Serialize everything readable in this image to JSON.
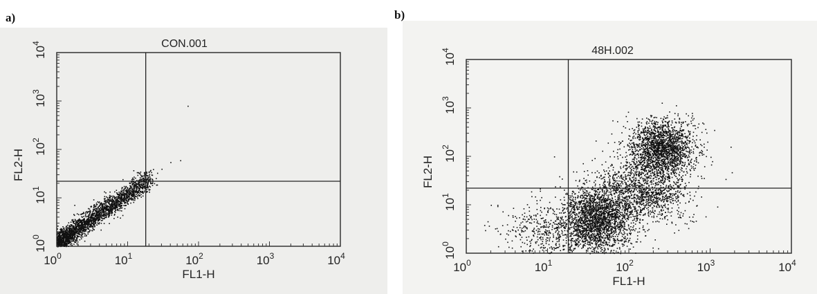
{
  "panels": [
    {
      "label": "a)"
    },
    {
      "label": "b)"
    }
  ],
  "chart_data": [
    {
      "type": "scatter",
      "title": "CON.001",
      "xlabel": "FL1-H",
      "ylabel": "FL2-H",
      "xscale": "log",
      "yscale": "log",
      "xlim": [
        1,
        10000
      ],
      "ylim": [
        1,
        10000
      ],
      "xticks": [
        1,
        10,
        100,
        1000,
        10000
      ],
      "yticks": [
        1,
        10,
        100,
        1000,
        10000
      ],
      "grid": false,
      "quadrant_gates": {
        "x": 18,
        "y": 22
      },
      "clusters": [
        {
          "x_range": [
            1,
            20
          ],
          "relation": "diagonal",
          "y_at_x1": 1.2,
          "y_at_x20": 25,
          "spread": 0.1,
          "points": 2600
        }
      ],
      "outliers": [
        [
          30,
          40
        ],
        [
          40,
          55
        ],
        [
          55,
          60
        ],
        [
          70,
          800
        ],
        [
          22,
          30
        ],
        [
          26,
          33
        ]
      ]
    },
    {
      "type": "scatter",
      "title": "48H.002",
      "xlabel": "FL1-H",
      "ylabel": "FL2-H",
      "xscale": "log",
      "yscale": "log",
      "xlim": [
        1,
        10000
      ],
      "ylim": [
        1,
        10000
      ],
      "xticks": [
        1,
        10,
        100,
        1000,
        10000
      ],
      "yticks": [
        1,
        10,
        100,
        1000,
        10000
      ],
      "grid": false,
      "quadrant_gates": {
        "x": 18,
        "y": 22
      },
      "clusters": [
        {
          "center": [
            40,
            5
          ],
          "spread": [
            0.22,
            0.35
          ],
          "points": 2200
        },
        {
          "center": [
            250,
            150
          ],
          "spread": [
            0.2,
            0.28
          ],
          "points": 1900
        },
        {
          "center": [
            150,
            20
          ],
          "spread": [
            0.3,
            0.35
          ],
          "points": 1300
        },
        {
          "center": [
            10,
            3
          ],
          "spread": [
            0.3,
            0.3
          ],
          "points": 450
        }
      ],
      "outliers": [
        [
          2,
          10
        ],
        [
          1.7,
          3
        ],
        [
          3,
          2
        ],
        [
          12,
          100
        ],
        [
          600,
          700
        ],
        [
          700,
          40
        ],
        [
          800,
          500
        ]
      ]
    }
  ]
}
